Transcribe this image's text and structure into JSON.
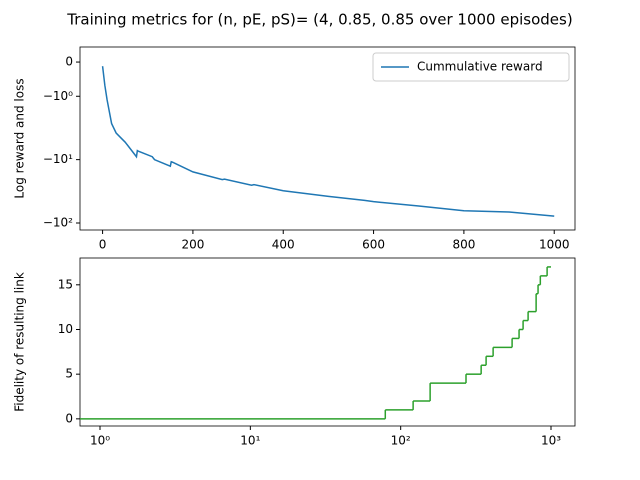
{
  "title": "Training metrics for (n, pE, pS)= (4, 0.85, 0.85 over 1000 episodes)",
  "chart_data": [
    {
      "type": "line",
      "ylabel": "Log reward and loss",
      "yscale": "symlog",
      "xscale": "linear",
      "xlim": [
        -50,
        1046
      ],
      "xticks": [
        0,
        200,
        400,
        600,
        800,
        1000
      ],
      "ylim": [
        -129,
        0.44
      ],
      "yticks": [
        0,
        {
          "value": -1,
          "label": "−10⁰"
        },
        {
          "value": -10,
          "label": "−10¹"
        },
        {
          "value": -100,
          "label": "−10²"
        }
      ],
      "legend": "upper right",
      "series": [
        {
          "name": "Cummulative reward",
          "color": "#1f77b4",
          "x": [
            0,
            5,
            10,
            20,
            30,
            50,
            75,
            77,
            80,
            110,
            115,
            150,
            152,
            155,
            200,
            265,
            270,
            330,
            335,
            400,
            500,
            580,
            600,
            700,
            800,
            900,
            1000
          ],
          "values": [
            -0.12,
            -0.68,
            -1.14,
            -2.7,
            -3.8,
            -5.3,
            -9.0,
            -7.2,
            -7.4,
            -9.0,
            -10,
            -12.7,
            -10.8,
            -11.0,
            -15.6,
            -20.7,
            -20.3,
            -25.3,
            -24.8,
            -31,
            -38,
            -44,
            -46,
            -54,
            -64,
            -67,
            -78
          ]
        }
      ]
    },
    {
      "type": "step",
      "ylabel": "Fidelity of resulting link",
      "yscale": "linear",
      "xscale": "log",
      "xlim": [
        0.736,
        1444
      ],
      "xticks": [
        {
          "value": 1,
          "label": "10⁰"
        },
        {
          "value": 10,
          "label": "10¹"
        },
        {
          "value": 100,
          "label": "10²"
        },
        {
          "value": 1000,
          "label": "10³"
        }
      ],
      "ylim": [
        -0.8,
        18.0
      ],
      "yticks": [
        0,
        5,
        10,
        15
      ],
      "series": [
        {
          "color": "#2ca02c",
          "x": [
            0.736,
            79,
            121,
            157,
            272,
            343,
            370,
            412,
            551,
            613,
            652,
            704,
            796,
            820,
            849,
            942,
            1000
          ],
          "values": [
            0,
            1,
            2,
            4,
            5,
            6,
            7,
            8,
            9,
            10,
            11,
            12,
            14,
            15,
            16,
            17,
            17
          ]
        }
      ]
    }
  ]
}
